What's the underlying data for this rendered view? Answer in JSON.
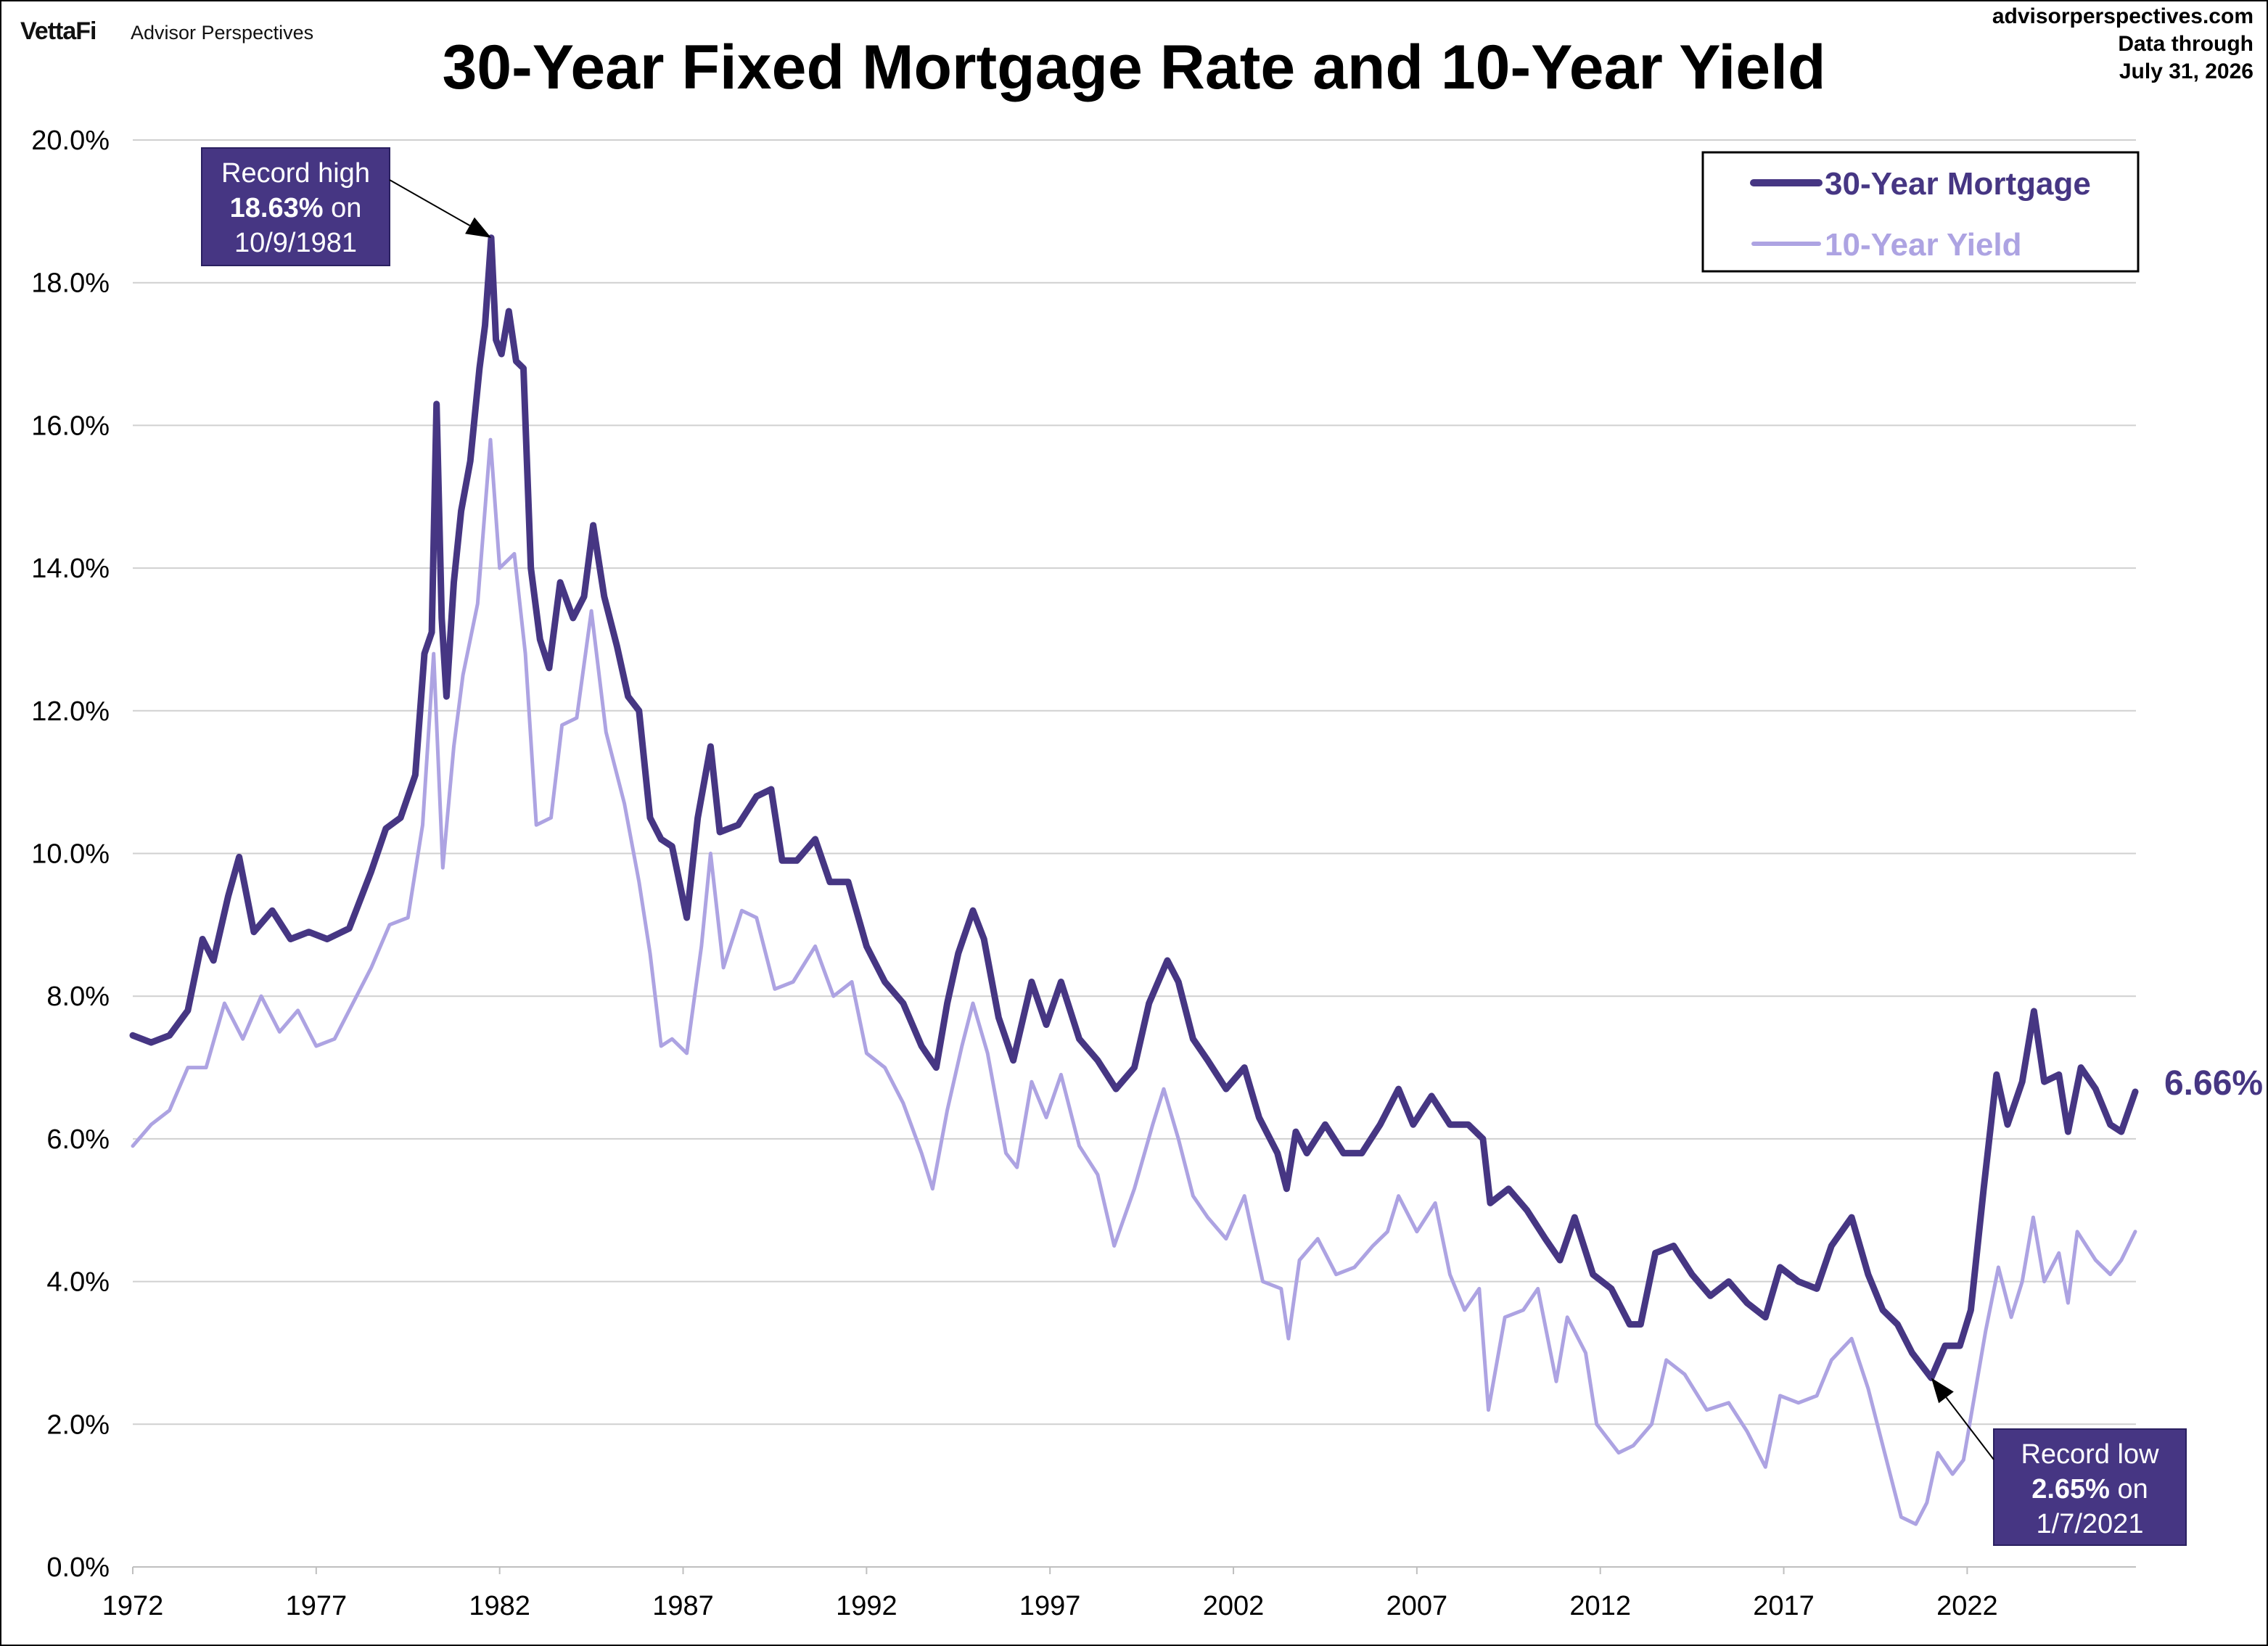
{
  "header": {
    "brand": "VettaFi",
    "brand_sub": "Advisor Perspectives",
    "site": "advisorperspectives.com",
    "data_through_label": "Data through",
    "data_through_date": "July 31, 2026"
  },
  "colors": {
    "mortgage": "#463683",
    "yield": "#ADA3E2",
    "annotation_bg": "#463683",
    "grid": "#d0d0d0"
  },
  "chart_data": {
    "type": "line",
    "title": "30-Year Fixed Mortgage Rate and 10-Year Yield",
    "xlabel": "",
    "ylabel": "",
    "xlim": [
      1972.0,
      2026.6
    ],
    "ylim": [
      0,
      20
    ],
    "x_ticks": [
      1972,
      1977,
      1982,
      1987,
      1992,
      1997,
      2002,
      2007,
      2012,
      2017,
      2022
    ],
    "x_tick_labels": [
      "1972",
      "1977",
      "1982",
      "1987",
      "1992",
      "1997",
      "2002",
      "2007",
      "2012",
      "2017",
      "2022"
    ],
    "y_ticks": [
      0,
      2,
      4,
      6,
      8,
      10,
      12,
      14,
      16,
      18,
      20
    ],
    "y_tick_labels": [
      "0.0%",
      "2.0%",
      "4.0%",
      "6.0%",
      "8.0%",
      "10.0%",
      "12.0%",
      "14.0%",
      "16.0%",
      "18.0%",
      "20.0%"
    ],
    "grid": true,
    "legend_position": "top-right",
    "series": [
      {
        "name": "30-Year Mortgage",
        "color": "#463683",
        "points": [
          [
            1972.0,
            7.45
          ],
          [
            1972.5,
            7.35
          ],
          [
            1973.0,
            7.45
          ],
          [
            1973.5,
            7.8
          ],
          [
            1973.9,
            8.8
          ],
          [
            1974.2,
            8.5
          ],
          [
            1974.6,
            9.4
          ],
          [
            1974.9,
            9.95
          ],
          [
            1975.3,
            8.9
          ],
          [
            1975.8,
            9.2
          ],
          [
            1976.3,
            8.8
          ],
          [
            1976.8,
            8.9
          ],
          [
            1977.3,
            8.8
          ],
          [
            1977.9,
            8.95
          ],
          [
            1978.5,
            9.75
          ],
          [
            1978.9,
            10.35
          ],
          [
            1979.3,
            10.5
          ],
          [
            1979.7,
            11.1
          ],
          [
            1979.95,
            12.8
          ],
          [
            1980.15,
            13.1
          ],
          [
            1980.28,
            16.3
          ],
          [
            1980.42,
            13.3
          ],
          [
            1980.55,
            12.2
          ],
          [
            1980.75,
            13.8
          ],
          [
            1980.95,
            14.8
          ],
          [
            1981.2,
            15.5
          ],
          [
            1981.45,
            16.8
          ],
          [
            1981.6,
            17.4
          ],
          [
            1981.77,
            18.63
          ],
          [
            1981.9,
            17.2
          ],
          [
            1982.05,
            17.0
          ],
          [
            1982.25,
            17.6
          ],
          [
            1982.45,
            16.9
          ],
          [
            1982.65,
            16.8
          ],
          [
            1982.85,
            14.0
          ],
          [
            1983.1,
            13.0
          ],
          [
            1983.35,
            12.6
          ],
          [
            1983.65,
            13.8
          ],
          [
            1984.0,
            13.3
          ],
          [
            1984.3,
            13.6
          ],
          [
            1984.55,
            14.6
          ],
          [
            1984.85,
            13.6
          ],
          [
            1985.2,
            12.9
          ],
          [
            1985.5,
            12.2
          ],
          [
            1985.8,
            12.0
          ],
          [
            1986.1,
            10.5
          ],
          [
            1986.4,
            10.2
          ],
          [
            1986.7,
            10.1
          ],
          [
            1987.1,
            9.1
          ],
          [
            1987.4,
            10.5
          ],
          [
            1987.75,
            11.5
          ],
          [
            1988.0,
            10.3
          ],
          [
            1988.5,
            10.4
          ],
          [
            1989.0,
            10.8
          ],
          [
            1989.4,
            10.9
          ],
          [
            1989.7,
            9.9
          ],
          [
            1990.1,
            9.9
          ],
          [
            1990.6,
            10.2
          ],
          [
            1991.0,
            9.6
          ],
          [
            1991.5,
            9.6
          ],
          [
            1992.0,
            8.7
          ],
          [
            1992.5,
            8.2
          ],
          [
            1993.0,
            7.9
          ],
          [
            1993.5,
            7.3
          ],
          [
            1993.9,
            7.0
          ],
          [
            1994.2,
            7.9
          ],
          [
            1994.5,
            8.6
          ],
          [
            1994.9,
            9.2
          ],
          [
            1995.2,
            8.8
          ],
          [
            1995.6,
            7.7
          ],
          [
            1996.0,
            7.1
          ],
          [
            1996.5,
            8.2
          ],
          [
            1996.9,
            7.6
          ],
          [
            1997.3,
            8.2
          ],
          [
            1997.8,
            7.4
          ],
          [
            1998.3,
            7.1
          ],
          [
            1998.8,
            6.7
          ],
          [
            1999.3,
            7.0
          ],
          [
            1999.7,
            7.9
          ],
          [
            2000.2,
            8.5
          ],
          [
            2000.5,
            8.2
          ],
          [
            2000.9,
            7.4
          ],
          [
            2001.3,
            7.1
          ],
          [
            2001.8,
            6.7
          ],
          [
            2002.3,
            7.0
          ],
          [
            2002.7,
            6.3
          ],
          [
            2003.2,
            5.8
          ],
          [
            2003.45,
            5.3
          ],
          [
            2003.7,
            6.1
          ],
          [
            2004.0,
            5.8
          ],
          [
            2004.5,
            6.2
          ],
          [
            2005.0,
            5.8
          ],
          [
            2005.5,
            5.8
          ],
          [
            2006.0,
            6.2
          ],
          [
            2006.5,
            6.7
          ],
          [
            2006.9,
            6.2
          ],
          [
            2007.4,
            6.6
          ],
          [
            2007.9,
            6.2
          ],
          [
            2008.4,
            6.2
          ],
          [
            2008.8,
            6.0
          ],
          [
            2009.0,
            5.1
          ],
          [
            2009.5,
            5.3
          ],
          [
            2010.0,
            5.0
          ],
          [
            2010.5,
            4.6
          ],
          [
            2010.9,
            4.3
          ],
          [
            2011.3,
            4.9
          ],
          [
            2011.8,
            4.1
          ],
          [
            2012.3,
            3.9
          ],
          [
            2012.8,
            3.4
          ],
          [
            2013.1,
            3.4
          ],
          [
            2013.5,
            4.4
          ],
          [
            2014.0,
            4.5
          ],
          [
            2014.5,
            4.1
          ],
          [
            2015.0,
            3.8
          ],
          [
            2015.5,
            4.0
          ],
          [
            2016.0,
            3.7
          ],
          [
            2016.5,
            3.5
          ],
          [
            2016.9,
            4.2
          ],
          [
            2017.4,
            4.0
          ],
          [
            2017.9,
            3.9
          ],
          [
            2018.3,
            4.5
          ],
          [
            2018.85,
            4.9
          ],
          [
            2019.3,
            4.1
          ],
          [
            2019.7,
            3.6
          ],
          [
            2020.1,
            3.4
          ],
          [
            2020.5,
            3.0
          ],
          [
            2021.02,
            2.65
          ],
          [
            2021.4,
            3.1
          ],
          [
            2021.8,
            3.1
          ],
          [
            2022.1,
            3.6
          ],
          [
            2022.45,
            5.3
          ],
          [
            2022.8,
            6.9
          ],
          [
            2023.1,
            6.2
          ],
          [
            2023.5,
            6.8
          ],
          [
            2023.82,
            7.79
          ],
          [
            2024.1,
            6.8
          ],
          [
            2024.5,
            6.9
          ],
          [
            2024.75,
            6.1
          ],
          [
            2025.1,
            7.0
          ],
          [
            2025.5,
            6.7
          ],
          [
            2025.9,
            6.2
          ],
          [
            2026.2,
            6.1
          ],
          [
            2026.58,
            6.66
          ]
        ]
      },
      {
        "name": "10-Year Yield",
        "color": "#ADA3E2",
        "points": [
          [
            1972.0,
            5.9
          ],
          [
            1972.5,
            6.2
          ],
          [
            1973.0,
            6.4
          ],
          [
            1973.5,
            7.0
          ],
          [
            1974.0,
            7.0
          ],
          [
            1974.5,
            7.9
          ],
          [
            1975.0,
            7.4
          ],
          [
            1975.5,
            8.0
          ],
          [
            1976.0,
            7.5
          ],
          [
            1976.5,
            7.8
          ],
          [
            1977.0,
            7.3
          ],
          [
            1977.5,
            7.4
          ],
          [
            1978.0,
            7.9
          ],
          [
            1978.5,
            8.4
          ],
          [
            1979.0,
            9.0
          ],
          [
            1979.5,
            9.1
          ],
          [
            1979.9,
            10.4
          ],
          [
            1980.2,
            12.8
          ],
          [
            1980.45,
            9.8
          ],
          [
            1980.75,
            11.5
          ],
          [
            1981.0,
            12.5
          ],
          [
            1981.4,
            13.5
          ],
          [
            1981.75,
            15.8
          ],
          [
            1982.0,
            14.0
          ],
          [
            1982.4,
            14.2
          ],
          [
            1982.7,
            12.8
          ],
          [
            1983.0,
            10.4
          ],
          [
            1983.4,
            10.5
          ],
          [
            1983.7,
            11.8
          ],
          [
            1984.1,
            11.9
          ],
          [
            1984.5,
            13.4
          ],
          [
            1984.9,
            11.7
          ],
          [
            1985.4,
            10.7
          ],
          [
            1985.8,
            9.6
          ],
          [
            1986.1,
            8.6
          ],
          [
            1986.4,
            7.3
          ],
          [
            1986.7,
            7.4
          ],
          [
            1987.1,
            7.2
          ],
          [
            1987.5,
            8.7
          ],
          [
            1987.75,
            10.0
          ],
          [
            1988.1,
            8.4
          ],
          [
            1988.6,
            9.2
          ],
          [
            1989.0,
            9.1
          ],
          [
            1989.5,
            8.1
          ],
          [
            1990.0,
            8.2
          ],
          [
            1990.6,
            8.7
          ],
          [
            1991.1,
            8.0
          ],
          [
            1991.6,
            8.2
          ],
          [
            1992.0,
            7.2
          ],
          [
            1992.5,
            7.0
          ],
          [
            1993.0,
            6.5
          ],
          [
            1993.5,
            5.8
          ],
          [
            1993.8,
            5.3
          ],
          [
            1994.2,
            6.4
          ],
          [
            1994.6,
            7.3
          ],
          [
            1994.9,
            7.9
          ],
          [
            1995.3,
            7.2
          ],
          [
            1995.8,
            5.8
          ],
          [
            1996.1,
            5.6
          ],
          [
            1996.5,
            6.8
          ],
          [
            1996.9,
            6.3
          ],
          [
            1997.3,
            6.9
          ],
          [
            1997.8,
            5.9
          ],
          [
            1998.3,
            5.5
          ],
          [
            1998.75,
            4.5
          ],
          [
            1999.3,
            5.3
          ],
          [
            1999.8,
            6.2
          ],
          [
            2000.1,
            6.7
          ],
          [
            2000.5,
            6.0
          ],
          [
            2000.9,
            5.2
          ],
          [
            2001.3,
            4.9
          ],
          [
            2001.8,
            4.6
          ],
          [
            2002.3,
            5.2
          ],
          [
            2002.8,
            4.0
          ],
          [
            2003.3,
            3.9
          ],
          [
            2003.5,
            3.2
          ],
          [
            2003.8,
            4.3
          ],
          [
            2004.3,
            4.6
          ],
          [
            2004.8,
            4.1
          ],
          [
            2005.3,
            4.2
          ],
          [
            2005.8,
            4.5
          ],
          [
            2006.2,
            4.7
          ],
          [
            2006.5,
            5.2
          ],
          [
            2007.0,
            4.7
          ],
          [
            2007.5,
            5.1
          ],
          [
            2007.9,
            4.1
          ],
          [
            2008.3,
            3.6
          ],
          [
            2008.7,
            3.9
          ],
          [
            2008.95,
            2.2
          ],
          [
            2009.4,
            3.5
          ],
          [
            2009.9,
            3.6
          ],
          [
            2010.3,
            3.9
          ],
          [
            2010.8,
            2.6
          ],
          [
            2011.1,
            3.5
          ],
          [
            2011.6,
            3.0
          ],
          [
            2011.9,
            2.0
          ],
          [
            2012.5,
            1.6
          ],
          [
            2012.9,
            1.7
          ],
          [
            2013.4,
            2.0
          ],
          [
            2013.8,
            2.9
          ],
          [
            2014.3,
            2.7
          ],
          [
            2014.9,
            2.2
          ],
          [
            2015.5,
            2.3
          ],
          [
            2016.0,
            1.9
          ],
          [
            2016.5,
            1.4
          ],
          [
            2016.9,
            2.4
          ],
          [
            2017.4,
            2.3
          ],
          [
            2017.9,
            2.4
          ],
          [
            2018.3,
            2.9
          ],
          [
            2018.85,
            3.2
          ],
          [
            2019.3,
            2.5
          ],
          [
            2019.75,
            1.6
          ],
          [
            2020.2,
            0.7
          ],
          [
            2020.6,
            0.6
          ],
          [
            2020.9,
            0.9
          ],
          [
            2021.2,
            1.6
          ],
          [
            2021.6,
            1.3
          ],
          [
            2021.9,
            1.5
          ],
          [
            2022.2,
            2.4
          ],
          [
            2022.5,
            3.3
          ],
          [
            2022.85,
            4.2
          ],
          [
            2023.2,
            3.5
          ],
          [
            2023.5,
            4.0
          ],
          [
            2023.8,
            4.9
          ],
          [
            2024.1,
            4.0
          ],
          [
            2024.5,
            4.4
          ],
          [
            2024.75,
            3.7
          ],
          [
            2025.0,
            4.7
          ],
          [
            2025.5,
            4.3
          ],
          [
            2025.9,
            4.1
          ],
          [
            2026.2,
            4.3
          ],
          [
            2026.58,
            4.7
          ]
        ]
      }
    ],
    "end_label": "6.66%",
    "annotations": [
      {
        "id": "high",
        "line1": "Record high",
        "line2_bold": "18.63%",
        "line2_rest": " on",
        "line3": "10/9/1981",
        "x": 1981.77,
        "y": 18.63
      },
      {
        "id": "low",
        "line1": "Record low",
        "line2_bold": "2.65%",
        "line2_rest": " on",
        "line3": "1/7/2021",
        "x": 2021.02,
        "y": 2.65
      }
    ]
  }
}
